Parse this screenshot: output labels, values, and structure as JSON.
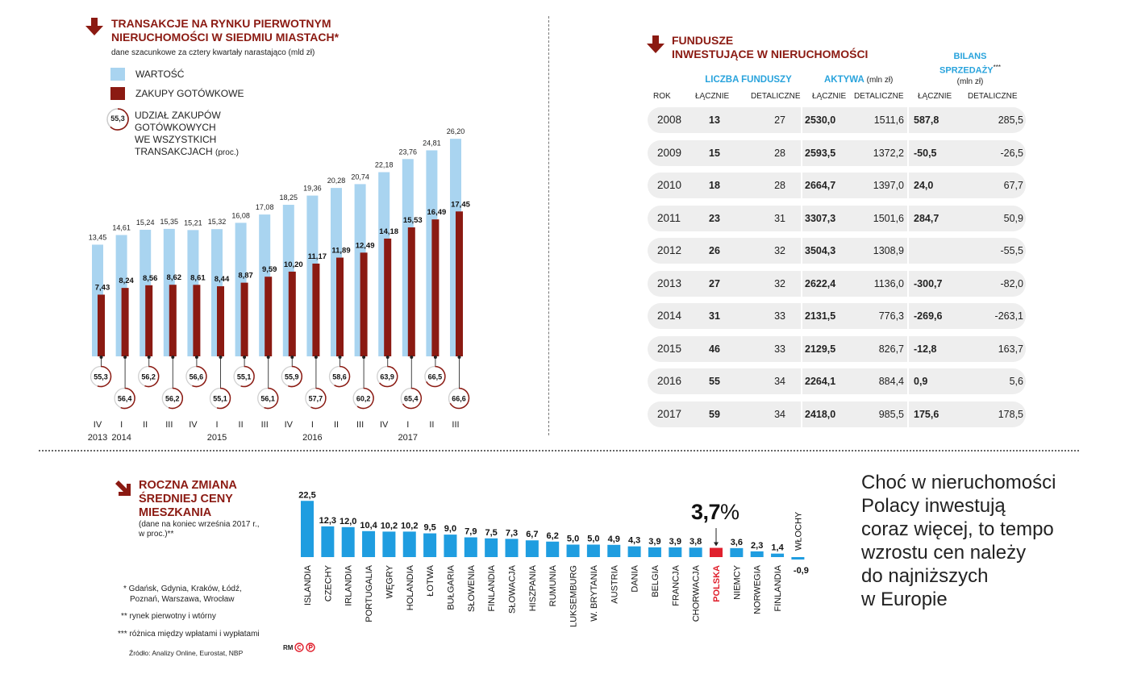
{
  "colors": {
    "light_blue": "#a9d4f0",
    "dark_red": "#8b1a12",
    "bright_blue": "#1f9de0",
    "highlight_red": "#e0202d",
    "header_blue": "#29a3dc",
    "row_bg": "#eeeeee"
  },
  "transactions": {
    "title_line1": "TRANSAKCJE NA RYNKU PIERWOTNYM",
    "title_line2": "NIERUCHOMOŚCI W SIEDMIU MIASTACH*",
    "subtitle": "dane szacunkowe za cztery kwartały narastająco (mld zł)",
    "legend": {
      "value": "WARTOŚĆ",
      "cash": "ZAKUPY GOTÓWKOWE",
      "share_sample": "55,3",
      "share_line1": "UDZIAŁ ZAKUPÓW",
      "share_line2": "GOTÓWKOWYCH",
      "share_line3": "WE WSZYSTKICH",
      "share_line4": "TRANSAKCJACH",
      "share_unit": "(proc.)"
    },
    "icon": "down-arrow-icon"
  },
  "chart_data": [
    {
      "type": "bar",
      "title": "TRANSAKCJE NA RYNKU PIERWOTNYM NIERUCHOMOŚCI W SIEDMIU MIASTACH*",
      "subtitle": "dane szacunkowe za cztery kwartały narastająco (mld zł)",
      "categories": [
        "IV 2013",
        "I 2014",
        "II",
        "III",
        "IV",
        "I 2015",
        "II",
        "III",
        "IV",
        "I 2016",
        "II",
        "III",
        "IV",
        "I 2017",
        "II",
        "III"
      ],
      "quarter_labels": [
        "IV",
        "I",
        "II",
        "III",
        "IV",
        "I",
        "II",
        "III",
        "IV",
        "I",
        "II",
        "III",
        "IV",
        "I",
        "II",
        "III"
      ],
      "year_labels": [
        {
          "index": 0,
          "text": "2013"
        },
        {
          "index": 1,
          "text": "2014"
        },
        {
          "index": 5,
          "text": "2015"
        },
        {
          "index": 9,
          "text": "2016"
        },
        {
          "index": 13,
          "text": "2017"
        }
      ],
      "series": [
        {
          "name": "WARTOŚĆ",
          "color": "#a9d4f0",
          "values": [
            13.45,
            14.61,
            15.24,
            15.35,
            15.21,
            15.32,
            16.08,
            17.08,
            18.25,
            19.36,
            20.28,
            20.74,
            22.18,
            23.76,
            24.81,
            26.2
          ],
          "labels": [
            "13,45",
            "14,61",
            "15,24",
            "15,35",
            "15,21",
            "15,32",
            "16,08",
            "17,08",
            "18,25",
            "19,36",
            "20,28",
            "20,74",
            "22,18",
            "23,76",
            "24,81",
            "26,20"
          ]
        },
        {
          "name": "ZAKUPY GOTÓWKOWE",
          "color": "#8b1a12",
          "values": [
            7.43,
            8.24,
            8.56,
            8.62,
            8.61,
            8.44,
            8.87,
            9.59,
            10.2,
            11.17,
            11.89,
            12.49,
            14.18,
            15.53,
            16.49,
            17.45
          ],
          "labels": [
            "7,43",
            "8,24",
            "8,56",
            "8,62",
            "8,61",
            "8,44",
            "8,87",
            "9,59",
            "10,20",
            "11,17",
            "11,89",
            "12,49",
            "14,18",
            "15,53",
            "16,49",
            "17,45"
          ]
        },
        {
          "name": "UDZIAŁ ZAKUPÓW GOTÓWKOWYCH WE WSZYSTKICH TRANSAKCJACH (proc.)",
          "values": [
            55.3,
            56.4,
            56.2,
            56.2,
            56.6,
            55.1,
            55.1,
            56.1,
            55.9,
            57.7,
            58.6,
            60.2,
            63.9,
            65.4,
            66.5,
            66.6
          ],
          "labels": [
            "55,3",
            "56,4",
            "56,2",
            "56,2",
            "56,6",
            "55,1",
            "55,1",
            "56,1",
            "55,9",
            "57,7",
            "58,6",
            "60,2",
            "63,9",
            "65,4",
            "66,5",
            "66,6"
          ]
        }
      ],
      "unit": "mld zł"
    },
    {
      "type": "table",
      "title": "FUNDUSZE INWESTUJĄCE W NIERUCHOMOŚCI",
      "group_headers": [
        "LICZBA FUNDUSZY",
        "AKTYWA",
        "BILANS SPRZEDAŻY***"
      ],
      "group_units": [
        "",
        "(mln zł)",
        "(mln zł)"
      ],
      "columns": [
        "ROK",
        "ŁĄCZNIE",
        "DETALICZNE",
        "ŁĄCZNIE",
        "DETALICZNE",
        "ŁĄCZNIE",
        "DETALICZNE"
      ],
      "rows": [
        [
          "2008",
          "13",
          "27",
          "2530,0",
          "1511,6",
          "587,8",
          "285,5"
        ],
        [
          "2009",
          "15",
          "28",
          "2593,5",
          "1372,2",
          "-50,5",
          "-26,5"
        ],
        [
          "2010",
          "18",
          "28",
          "2664,7",
          "1397,0",
          "24,0",
          "67,7"
        ],
        [
          "2011",
          "23",
          "31",
          "3307,3",
          "1501,6",
          "284,7",
          "50,9"
        ],
        [
          "2012",
          "26",
          "32",
          "3504,3",
          "1308,9",
          "",
          "-55,5"
        ],
        [
          "2013",
          "27",
          "32",
          "2622,4",
          "1136,0",
          "-300,7",
          "-82,0"
        ],
        [
          "2014",
          "31",
          "33",
          "2131,5",
          "776,3",
          "-269,6",
          "-263,1"
        ],
        [
          "2015",
          "46",
          "33",
          "2129,5",
          "826,7",
          "-12,8",
          "163,7"
        ],
        [
          "2016",
          "55",
          "34",
          "2264,1",
          "884,4",
          "0,9",
          "5,6"
        ],
        [
          "2017",
          "59",
          "34",
          "2418,0",
          "985,5",
          "175,6",
          "178,5"
        ]
      ]
    },
    {
      "type": "bar",
      "title": "ROCZNA ZMIANA ŚREDNIEJ CENY MIESZKANIA",
      "subtitle": "(dane na koniec września 2017 r., w proc.)**",
      "categories": [
        "ISLANDIA",
        "CZECHY",
        "IRLANDIA",
        "PORTUGALIA",
        "WĘGRY",
        "HOLANDIA",
        "ŁOTWA",
        "BUŁGARIA",
        "SŁOWENIA",
        "FINLANDIA",
        "SŁOWACJA",
        "HISZPANIA",
        "RUMUNIA",
        "LUKSEMBURG",
        "W. BRYTANIA",
        "AUSTRIA",
        "DANIA",
        "BELGIA",
        "FRANCJA",
        "CHORWACJA",
        "POLSKA",
        "NIEMCY",
        "NORWEGIA",
        "FINLANDIA",
        "WŁOCHY"
      ],
      "values": [
        22.5,
        12.3,
        12.0,
        10.4,
        10.2,
        10.2,
        9.5,
        9.0,
        7.9,
        7.5,
        7.3,
        6.7,
        6.2,
        5.0,
        5.0,
        4.9,
        4.3,
        3.9,
        3.9,
        3.8,
        3.7,
        3.6,
        2.3,
        1.4,
        -0.9
      ],
      "labels": [
        "22,5",
        "12,3",
        "12,0",
        "10,4",
        "10,2",
        "10,2",
        "9,5",
        "9,0",
        "7,9",
        "7,5",
        "7,3",
        "6,7",
        "6,2",
        "5,0",
        "5,0",
        "4,9",
        "4,3",
        "3,9",
        "3,9",
        "3,8",
        "",
        "3,6",
        "2,3",
        "1,4",
        "-0,9"
      ],
      "highlight_index": 20,
      "highlight_label": "3,7%"
    }
  ],
  "funds": {
    "title_line1": "FUNDUSZE",
    "title_line2": "INWESTUJĄCE W NIERUCHOMOŚCI",
    "h_count": "LICZBA FUNDUSZY",
    "h_assets": "AKTYWA",
    "h_assets_unit": "(mln zł)",
    "h_balance_line1": "BILANS",
    "h_balance_line2": "SPRZEDAŻY",
    "h_balance_mark": "***",
    "h_balance_unit": "(mln zł)",
    "col_year": "ROK",
    "col_total": "ŁĄCZNIE",
    "col_retail": "DETALICZNE"
  },
  "prices": {
    "title_line1": "ROCZNA ZMIANA",
    "title_line2": "ŚREDNIEJ CENY",
    "title_line3": "MIESZKANIA",
    "sub_line1": "(dane na koniec września 2017 r.,",
    "sub_line2": "w proc.)**",
    "highlight_number": "3,7",
    "highlight_percent": "%"
  },
  "notes": {
    "n1_line1": "* Gdańsk, Gdynia, Kraków, Łódź,",
    "n1_line2": "Poznań, Warszawa, Wrocław",
    "n2": "** rynek pierwotny i wtórny",
    "n3": "*** różnica między wpłatami i wypłatami",
    "source": "Źródło: Analizy Online, Eurostat, NBP",
    "credit": "RM"
  },
  "quote": {
    "line1": "Choć w nieruchomości",
    "line2": "Polacy inwestują",
    "line3": "coraz więcej, to tempo",
    "line4": "wzrostu cen należy",
    "line5": "do najniższych",
    "line6": "w Europie"
  }
}
